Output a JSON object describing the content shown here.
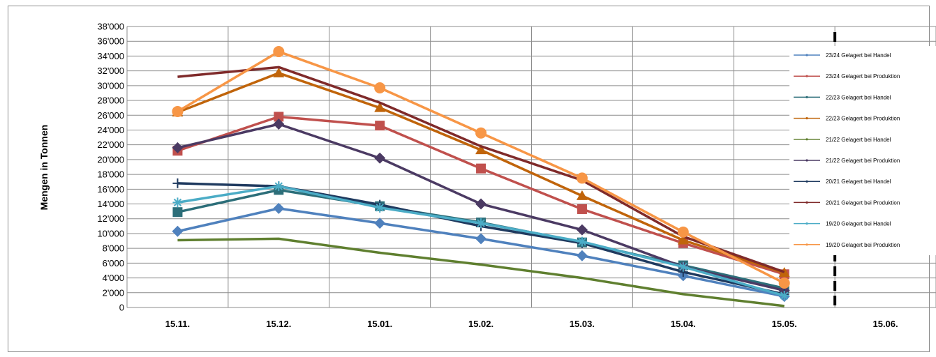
{
  "chart_data": {
    "type": "line",
    "title": "",
    "xlabel": "",
    "ylabel": "Mengen in Tonnen",
    "categories": [
      "15.11.",
      "15.12.",
      "15.01.",
      "15.02.",
      "15.03.",
      "15.04.",
      "15.05.",
      "15.06."
    ],
    "yticks": [
      "0",
      "2'000",
      "4'000",
      "6'000",
      "8'000",
      "10'000",
      "12'000",
      "14'000",
      "16'000",
      "18'000",
      "20'000",
      "22'000",
      "24'000",
      "26'000",
      "28'000",
      "30'000",
      "32'000",
      "34'000",
      "36'000",
      "38'000"
    ],
    "ylim": [
      0,
      38000
    ],
    "grid": true,
    "legend_position": "right",
    "vertical_marker": {
      "between": [
        "15.05.",
        "15.06."
      ],
      "style": "dashed",
      "color": "#000000"
    },
    "series": [
      {
        "name": "23/24 Gelagert bei Handel",
        "color": "#4f81bd",
        "marker": "diamond",
        "values": [
          10300,
          13400,
          11400,
          9300,
          7000,
          4300,
          1500,
          null
        ]
      },
      {
        "name": "23/24 Gelagert bei Produktion",
        "color": "#c0504d",
        "marker": "square",
        "values": [
          21200,
          25800,
          24600,
          18800,
          13300,
          8700,
          4500,
          null
        ]
      },
      {
        "name": "22/23 Gelagert bei Handel",
        "color": "#2c6e79",
        "marker": "square",
        "values": [
          12900,
          15900,
          13700,
          11500,
          8800,
          5700,
          2600,
          null
        ]
      },
      {
        "name": "22/23 Gelagert bei Produktion",
        "color": "#c0640a",
        "marker": "triangle",
        "values": [
          26400,
          31700,
          27000,
          21300,
          15100,
          9100,
          4700,
          null
        ]
      },
      {
        "name": "21/22 Gelagert bei Handel",
        "color": "#5f7f2f",
        "marker": "none",
        "values": [
          9100,
          9300,
          7400,
          5800,
          4000,
          1800,
          200,
          null
        ]
      },
      {
        "name": "21/22 Gelagert bei Produktion",
        "color": "#4b3a63",
        "marker": "diamond",
        "values": [
          21600,
          24800,
          20200,
          14000,
          10500,
          5500,
          2300,
          null
        ]
      },
      {
        "name": "20/21 Gelagert bei Handel",
        "color": "#1f3a5f",
        "marker": "plus",
        "values": [
          16800,
          16400,
          13900,
          11000,
          8700,
          4800,
          1800,
          null
        ]
      },
      {
        "name": "20/21 Gelagert bei Produktion",
        "color": "#7f2a2a",
        "marker": "none",
        "values": [
          31200,
          32500,
          27700,
          21800,
          17200,
          9600,
          4800,
          null
        ]
      },
      {
        "name": "19/20 Gelagert bei Handel",
        "color": "#4bacc6",
        "marker": "star",
        "values": [
          14200,
          16400,
          13500,
          11400,
          8900,
          5500,
          1600,
          null
        ]
      },
      {
        "name": "19/20 Gelagert bei Produktion",
        "color": "#f79646",
        "marker": "circle",
        "values": [
          26500,
          34600,
          29700,
          23600,
          17500,
          10200,
          3300,
          null
        ]
      }
    ]
  }
}
